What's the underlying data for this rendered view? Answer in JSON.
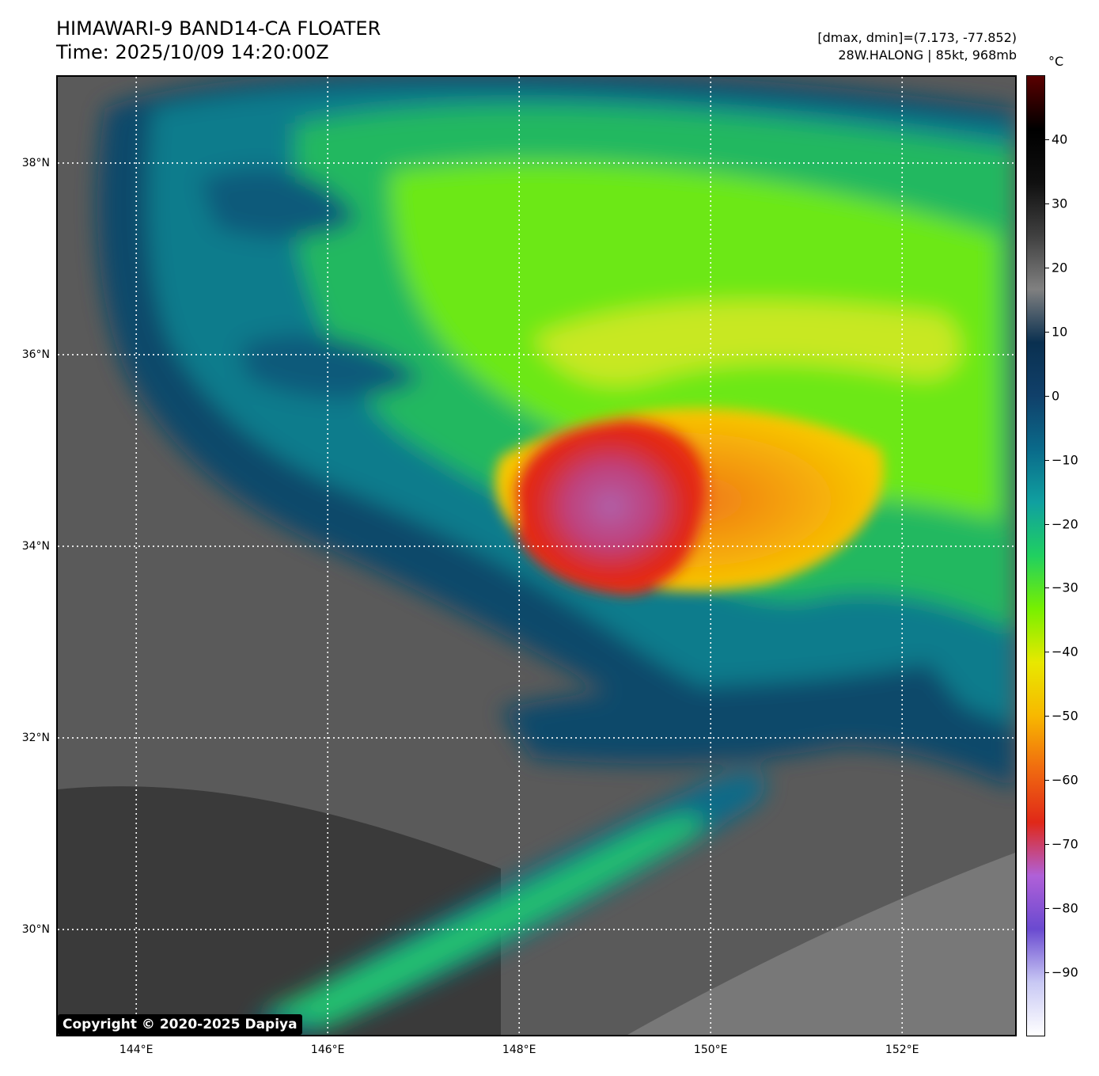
{
  "header": {
    "title_line1": "HIMAWARI-9 BAND14-CA FLOATER",
    "title_line2": "Time: 2025/10/09 14:20:00Z",
    "range_text": "[dmax, dmin]=(7.173, -77.852)",
    "storm_text": "28W.HALONG | 85kt, 968mb"
  },
  "map": {
    "lon_range": [
      143.18,
      153.18
    ],
    "lat_range": [
      28.9,
      38.9
    ],
    "lat_ticks": [
      {
        "value": 38,
        "label": "38°N"
      },
      {
        "value": 36,
        "label": "36°N"
      },
      {
        "value": 34,
        "label": "34°N"
      },
      {
        "value": 32,
        "label": "32°N"
      },
      {
        "value": 30,
        "label": "30°N"
      }
    ],
    "lon_ticks": [
      {
        "value": 144,
        "label": "144°E"
      },
      {
        "value": 146,
        "label": "146°E"
      },
      {
        "value": 148,
        "label": "148°E"
      },
      {
        "value": 150,
        "label": "150°E"
      },
      {
        "value": 152,
        "label": "152°E"
      }
    ],
    "storm_center": {
      "lon": 148.8,
      "lat": 34.6
    }
  },
  "colorbar": {
    "unit": "°C",
    "range": [
      -100,
      50
    ],
    "ticks": [
      {
        "value": 40,
        "label": "40"
      },
      {
        "value": 30,
        "label": "30"
      },
      {
        "value": 20,
        "label": "20"
      },
      {
        "value": 10,
        "label": "10"
      },
      {
        "value": 0,
        "label": "0"
      },
      {
        "value": -10,
        "label": "−10"
      },
      {
        "value": -20,
        "label": "−20"
      },
      {
        "value": -30,
        "label": "−30"
      },
      {
        "value": -40,
        "label": "−40"
      },
      {
        "value": -50,
        "label": "−50"
      },
      {
        "value": -60,
        "label": "−60"
      },
      {
        "value": -70,
        "label": "−70"
      },
      {
        "value": -80,
        "label": "−80"
      },
      {
        "value": -90,
        "label": "−90"
      }
    ],
    "colors": [
      "#ffffff",
      "#c8c8f4",
      "#6a4ad0",
      "#b060d8",
      "#e02818",
      "#f06a10",
      "#f8b800",
      "#e8e800",
      "#78f000",
      "#20d060",
      "#10a0a0",
      "#0a6a8a",
      "#10406a",
      "#0a3050",
      "#808080",
      "#404040",
      "#101010",
      "#000000",
      "#5a0000"
    ]
  },
  "copyright": "Copyright © 2020-2025 Dapiya"
}
